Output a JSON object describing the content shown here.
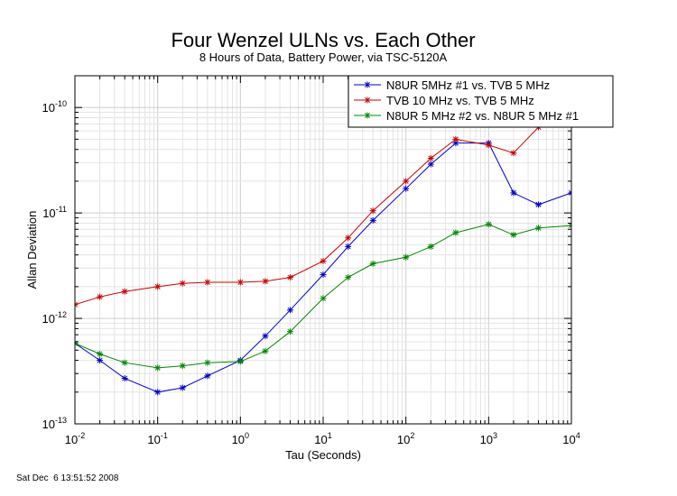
{
  "chart_data": {
    "type": "line",
    "title": "Four Wenzel ULNs vs. Each Other",
    "subtitle": "8 Hours of Data, Battery Power, via TSC-5120A",
    "xlabel": "Tau (Seconds)",
    "ylabel": "Allan Deviation",
    "xscale": "log",
    "yscale": "log",
    "xlim": [
      0.01,
      10000
    ],
    "ylim": [
      1e-13,
      2e-10
    ],
    "x_ticks": [
      {
        "v": 0.01,
        "base": "10",
        "exp": "-2"
      },
      {
        "v": 0.1,
        "base": "10",
        "exp": "-1"
      },
      {
        "v": 1,
        "base": "10",
        "exp": "0"
      },
      {
        "v": 10,
        "base": "10",
        "exp": "1"
      },
      {
        "v": 100,
        "base": "10",
        "exp": "2"
      },
      {
        "v": 1000,
        "base": "10",
        "exp": "3"
      },
      {
        "v": 10000,
        "base": "10",
        "exp": "4"
      }
    ],
    "y_ticks": [
      {
        "v": 1e-13,
        "base": "10",
        "exp": "-13"
      },
      {
        "v": 1e-12,
        "base": "10",
        "exp": "-12"
      },
      {
        "v": 1e-11,
        "base": "10",
        "exp": "-11"
      },
      {
        "v": 1e-10,
        "base": "10",
        "exp": "-10"
      }
    ],
    "grid": true,
    "legend_position": "top-right",
    "x": [
      0.01,
      0.02,
      0.04,
      0.1,
      0.2,
      0.4,
      1,
      2,
      4,
      10,
      20,
      40,
      100,
      200,
      400,
      1000,
      2000,
      4000,
      10000
    ],
    "series": [
      {
        "name": "N8UR 5MHz #1 vs. TVB 5 MHz",
        "color": "#0000cc",
        "values": [
          5.8e-13,
          4e-13,
          2.7e-13,
          2e-13,
          2.2e-13,
          2.85e-13,
          4e-13,
          6.8e-13,
          1.2e-12,
          2.6e-12,
          4.8e-12,
          8.5e-12,
          1.7e-11,
          2.9e-11,
          4.6e-11,
          4.6e-11,
          1.55e-11,
          1.2e-11,
          1.55e-11
        ]
      },
      {
        "name": "TVB 10 MHz vs. TVB 5 MHz",
        "color": "#cc0000",
        "values": [
          1.35e-12,
          1.6e-12,
          1.8e-12,
          2e-12,
          2.15e-12,
          2.2e-12,
          2.2e-12,
          2.25e-12,
          2.45e-12,
          3.5e-12,
          5.8e-12,
          1.05e-11,
          2e-11,
          3.3e-11,
          5e-11,
          4.4e-11,
          3.7e-11,
          6.5e-11,
          9.5e-11
        ]
      },
      {
        "name": "N8UR 5 MHz #2 vs. N8UR 5 MHz #1",
        "color": "#008800",
        "values": [
          5.8e-13,
          4.6e-13,
          3.8e-13,
          3.4e-13,
          3.55e-13,
          3.8e-13,
          3.9e-13,
          4.9e-13,
          7.5e-13,
          1.55e-12,
          2.45e-12,
          3.3e-12,
          3.8e-12,
          4.8e-12,
          6.5e-12,
          7.8e-12,
          6.2e-12,
          7.2e-12,
          7.6e-12
        ]
      }
    ]
  },
  "footer": {
    "timestamp": "Sat Dec  6 13:51:52 2008"
  }
}
